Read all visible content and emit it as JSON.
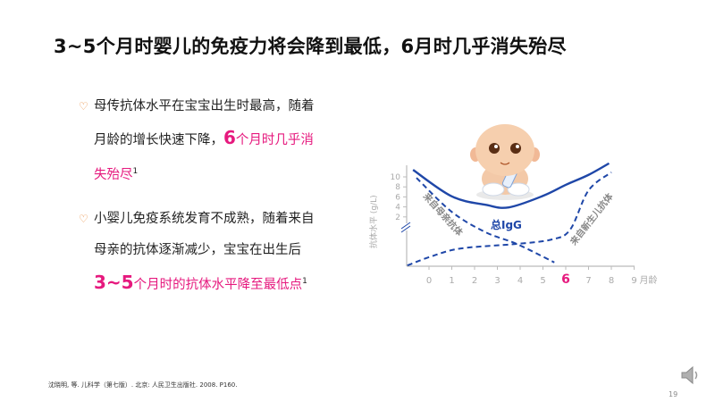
{
  "title": "3~5个月时婴儿的免疫力将会降到最低，6月时几乎消失殆尽",
  "bullets": [
    {
      "icon": "heart-icon",
      "text_lines": [
        "母传抗体水平在宝宝出生时最高，随着",
        "月龄的增长快速下降，"
      ],
      "highlight_big": "6",
      "highlight": "个月时几乎消",
      "highlight2": "失殆尽",
      "sup": "1"
    },
    {
      "icon": "heart-icon",
      "text_lines": [
        "小婴儿免疫系统发育不成熟，随着来自",
        "母亲的抗体逐渐减少，宝宝在出生后"
      ],
      "highlight_big": "3~5",
      "highlight": "个月时的抗体水平降至最低点",
      "sup": "1"
    }
  ],
  "footnote": "沈晓明, 等. 儿科学（第七版）. 北京: 人民卫生出版社. 2008. P160.",
  "page_number": "19",
  "colors": {
    "accent": "#e6197e",
    "curve": "#1f47a8",
    "axis": "#bbbbbb",
    "label": "#888888"
  },
  "chart_data": {
    "type": "line",
    "ylabel": "抗体水平 (g/L)",
    "xlabel": "月龄",
    "x_ticks": [
      "0",
      "1",
      "2",
      "3",
      "4",
      "5",
      "6",
      "7",
      "8",
      "9"
    ],
    "x_tick_highlight": "6",
    "y_ticks": [
      "2",
      "4",
      "6",
      "8",
      "10"
    ],
    "y_axis_break": true,
    "xlim": [
      -1,
      9
    ],
    "grid": false,
    "series": [
      {
        "name": "总IgG",
        "style": "solid",
        "points": [
          [
            -0.7,
            11.4
          ],
          [
            1,
            6.1
          ],
          [
            2.5,
            4.4
          ],
          [
            3.5,
            3.9
          ],
          [
            5,
            6.2
          ],
          [
            6,
            8.4
          ],
          [
            7,
            10.4
          ],
          [
            7.9,
            12.7
          ]
        ]
      },
      {
        "name": "来自母亲抗体",
        "style": "dashed",
        "points": [
          [
            -0.55,
            9.8
          ],
          [
            1,
            3
          ],
          [
            2.5,
            -1.1
          ],
          [
            3.85,
            -3.4
          ],
          [
            5.5,
            -7.1
          ]
        ]
      },
      {
        "name": "来自新生儿抗体",
        "style": "dashed",
        "points": [
          [
            -0.95,
            -7.7
          ],
          [
            0.1,
            -5.9
          ],
          [
            1.4,
            -4.3
          ],
          [
            3.85,
            -3.4
          ],
          [
            5.4,
            -2.5
          ],
          [
            6.2,
            -0.5
          ],
          [
            7,
            7.3
          ],
          [
            8,
            10.9
          ]
        ]
      }
    ]
  }
}
